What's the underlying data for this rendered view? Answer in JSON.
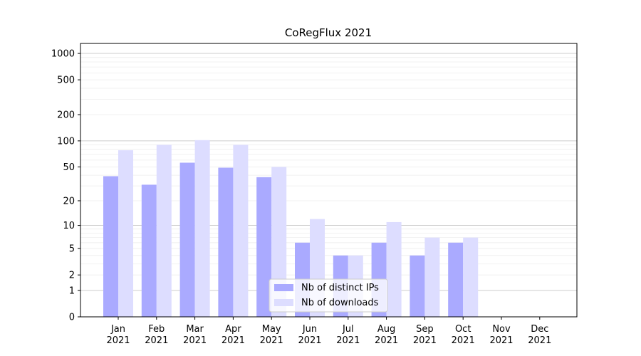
{
  "chart_data": {
    "type": "bar",
    "title": "CoRegFlux 2021",
    "xlabel": "",
    "ylabel": "",
    "yscale": "symlog",
    "grid": true,
    "legend_position": "lower-center",
    "categories": [
      "Jan\n2021",
      "Feb\n2021",
      "Mar\n2021",
      "Apr\n2021",
      "May\n2021",
      "Jun\n2021",
      "Jul\n2021",
      "Aug\n2021",
      "Sep\n2021",
      "Oct\n2021",
      "Nov\n2021",
      "Dec\n2021"
    ],
    "y_ticks": [
      0,
      1,
      2,
      5,
      10,
      20,
      50,
      100,
      200,
      500,
      1000
    ],
    "ylim": [
      0,
      1300
    ],
    "series": [
      {
        "name": "Nb of distinct IPs",
        "color": "#aaaaff",
        "values": [
          39,
          31,
          56,
          49,
          38,
          6,
          4,
          6,
          4,
          6,
          0,
          0
        ]
      },
      {
        "name": "Nb of downloads",
        "color": "#ddddff",
        "values": [
          78,
          90,
          102,
          90,
          50,
          12,
          4,
          11,
          7,
          7,
          0,
          0
        ]
      }
    ]
  }
}
